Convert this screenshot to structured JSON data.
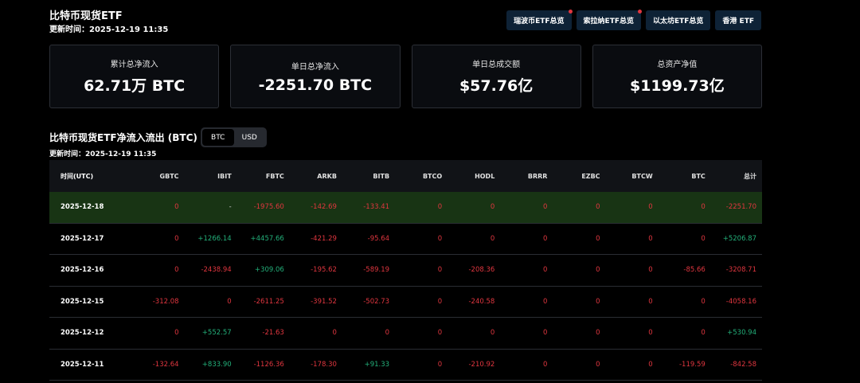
{
  "header": {
    "title": "比特币现货ETF",
    "updated": "更新时间：2025-12-19 11:35"
  },
  "nav": [
    {
      "label": "瑞波币ETF总览",
      "dot": true
    },
    {
      "label": "索拉纳ETF总览",
      "dot": true
    },
    {
      "label": "以太坊ETF总览",
      "dot": false
    },
    {
      "label": "香港 ETF",
      "dot": false
    }
  ],
  "stats": [
    {
      "label": "累计总净流入",
      "value": "62.71万 BTC"
    },
    {
      "label": "单日总净流入",
      "value": "-2251.70 BTC"
    },
    {
      "label": "单日总成交额",
      "value": "$57.76亿"
    },
    {
      "label": "总资产净值",
      "value": "$1199.73亿"
    }
  ],
  "section": {
    "title": "比特币现货ETF净流入流出 (BTC)",
    "updated": "更新时间：2025-12-19 11:35",
    "toggle": [
      "BTC",
      "USD"
    ],
    "toggle_active": "BTC"
  },
  "colors": {
    "negative": "#e0363f",
    "positive": "#23b07a",
    "highlight_row": "#183414",
    "nav_bg": "#0e2236"
  },
  "table": {
    "headers": [
      "时间(UTC)",
      "GBTC",
      "IBIT",
      "FBTC",
      "ARKB",
      "BITB",
      "BTCO",
      "HODL",
      "BRRR",
      "EZBC",
      "BTCW",
      "BTC",
      "总计"
    ],
    "rows": [
      [
        "2025-12-18",
        "0",
        "-",
        "-1975.60",
        "-142.69",
        "-133.41",
        "0",
        "0",
        "0",
        "0",
        "0",
        "0",
        "-2251.70"
      ],
      [
        "2025-12-17",
        "0",
        "+1266.14",
        "+4457.66",
        "-421.29",
        "-95.64",
        "0",
        "0",
        "0",
        "0",
        "0",
        "0",
        "+5206.87"
      ],
      [
        "2025-12-16",
        "0",
        "-2438.94",
        "+309.06",
        "-195.62",
        "-589.19",
        "0",
        "-208.36",
        "0",
        "0",
        "0",
        "-85.66",
        "-3208.71"
      ],
      [
        "2025-12-15",
        "-312.08",
        "0",
        "-2611.25",
        "-391.52",
        "-502.73",
        "0",
        "-240.58",
        "0",
        "0",
        "0",
        "0",
        "-4058.16"
      ],
      [
        "2025-12-12",
        "0",
        "+552.57",
        "-21.63",
        "0",
        "0",
        "0",
        "0",
        "0",
        "0",
        "0",
        "0",
        "+530.94"
      ],
      [
        "2025-12-11",
        "-132.64",
        "+833.90",
        "-1126.36",
        "-178.30",
        "+91.33",
        "0",
        "-210.92",
        "0",
        "0",
        "0",
        "-119.59",
        "-842.58"
      ]
    ]
  }
}
